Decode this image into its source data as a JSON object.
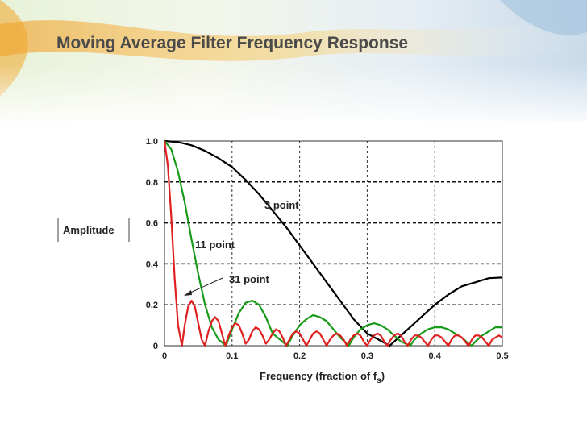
{
  "slide": {
    "title": "Moving Average Filter Frequency Response"
  },
  "chart_data": {
    "type": "line",
    "title": "",
    "xlabel": "Frequency (fraction of f",
    "xlabel_subscript": "s",
    "xlabel_suffix": ")",
    "ylabel": "Amplitude",
    "xlim": [
      0,
      0.5
    ],
    "ylim": [
      0,
      1.0
    ],
    "x_ticks": [
      "0",
      "0.1",
      "0.2",
      "0.3",
      "0.4",
      "0.5"
    ],
    "y_ticks": [
      "0",
      "0.2",
      "0.4",
      "0.6",
      "0.8",
      "1.0"
    ],
    "grid": true,
    "colors": {
      "3 point": "#000000",
      "11 point": "#1a9a1a",
      "31 point": "#e02020"
    },
    "series": [
      {
        "name": "3 point",
        "x": [
          0,
          0.02,
          0.04,
          0.06,
          0.08,
          0.1,
          0.12,
          0.14,
          0.16,
          0.18,
          0.2,
          0.22,
          0.24,
          0.26,
          0.28,
          0.3,
          0.3333,
          0.36,
          0.38,
          0.4,
          0.42,
          0.44,
          0.46,
          0.48,
          0.5
        ],
        "values": [
          1.0,
          0.995,
          0.979,
          0.952,
          0.916,
          0.873,
          0.81,
          0.74,
          0.66,
          0.58,
          0.49,
          0.4,
          0.31,
          0.22,
          0.13,
          0.06,
          0.0,
          0.08,
          0.14,
          0.2,
          0.25,
          0.29,
          0.31,
          0.33,
          0.333
        ]
      },
      {
        "name": "11 point",
        "x": [
          0,
          0.01,
          0.02,
          0.03,
          0.04,
          0.05,
          0.06,
          0.07,
          0.08,
          0.0909,
          0.1,
          0.11,
          0.12,
          0.13,
          0.14,
          0.15,
          0.16,
          0.1818,
          0.19,
          0.2,
          0.21,
          0.22,
          0.23,
          0.24,
          0.25,
          0.26,
          0.2727,
          0.28,
          0.29,
          0.3,
          0.31,
          0.32,
          0.33,
          0.34,
          0.35,
          0.3636,
          0.37,
          0.38,
          0.39,
          0.4,
          0.41,
          0.42,
          0.43,
          0.44,
          0.45,
          0.4545,
          0.46,
          0.47,
          0.48,
          0.49,
          0.5
        ],
        "values": [
          1.0,
          0.96,
          0.85,
          0.7,
          0.52,
          0.35,
          0.2,
          0.09,
          0.03,
          0.0,
          0.08,
          0.16,
          0.21,
          0.22,
          0.2,
          0.14,
          0.06,
          0.0,
          0.05,
          0.1,
          0.13,
          0.15,
          0.14,
          0.12,
          0.08,
          0.04,
          0.0,
          0.04,
          0.08,
          0.1,
          0.11,
          0.1,
          0.08,
          0.05,
          0.02,
          0.0,
          0.03,
          0.06,
          0.08,
          0.09,
          0.09,
          0.08,
          0.06,
          0.04,
          0.01,
          0.0,
          0.02,
          0.05,
          0.07,
          0.09,
          0.09
        ]
      },
      {
        "name": "31 point",
        "x": [
          0,
          0.005,
          0.01,
          0.015,
          0.02,
          0.0258,
          0.03,
          0.035,
          0.04,
          0.045,
          0.05,
          0.055,
          0.06,
          0.065,
          0.07,
          0.075,
          0.08,
          0.085,
          0.09,
          0.095,
          0.1,
          0.105,
          0.11,
          0.115,
          0.12,
          0.125,
          0.13,
          0.135,
          0.14,
          0.145,
          0.15,
          0.155,
          0.16,
          0.165,
          0.17,
          0.175,
          0.18,
          0.185,
          0.19,
          0.195,
          0.2,
          0.205,
          0.21,
          0.215,
          0.22,
          0.225,
          0.23,
          0.235,
          0.24,
          0.245,
          0.25,
          0.255,
          0.26,
          0.265,
          0.27,
          0.275,
          0.28,
          0.285,
          0.29,
          0.295,
          0.3,
          0.305,
          0.31,
          0.315,
          0.32,
          0.325,
          0.33,
          0.335,
          0.34,
          0.345,
          0.35,
          0.355,
          0.36,
          0.365,
          0.37,
          0.375,
          0.38,
          0.385,
          0.39,
          0.395,
          0.4,
          0.405,
          0.41,
          0.415,
          0.42,
          0.425,
          0.43,
          0.435,
          0.44,
          0.445,
          0.45,
          0.455,
          0.46,
          0.465,
          0.47,
          0.475,
          0.48,
          0.485,
          0.49,
          0.495,
          0.5
        ],
        "values": [
          1.0,
          0.88,
          0.63,
          0.33,
          0.1,
          0.0,
          0.1,
          0.19,
          0.22,
          0.19,
          0.11,
          0.03,
          0.0,
          0.07,
          0.12,
          0.14,
          0.12,
          0.06,
          0.0,
          0.05,
          0.09,
          0.11,
          0.1,
          0.06,
          0.01,
          0.03,
          0.07,
          0.09,
          0.08,
          0.05,
          0.01,
          0.03,
          0.06,
          0.08,
          0.07,
          0.04,
          0.0,
          0.03,
          0.06,
          0.07,
          0.06,
          0.03,
          0.0,
          0.03,
          0.06,
          0.07,
          0.06,
          0.03,
          0.0,
          0.03,
          0.05,
          0.06,
          0.05,
          0.03,
          0.0,
          0.03,
          0.05,
          0.06,
          0.05,
          0.02,
          0.0,
          0.03,
          0.05,
          0.06,
          0.05,
          0.02,
          0.0,
          0.03,
          0.05,
          0.06,
          0.05,
          0.02,
          0.0,
          0.03,
          0.05,
          0.05,
          0.04,
          0.02,
          0.0,
          0.03,
          0.05,
          0.05,
          0.04,
          0.02,
          0.0,
          0.03,
          0.05,
          0.05,
          0.04,
          0.02,
          0.0,
          0.03,
          0.05,
          0.05,
          0.04,
          0.02,
          0.0,
          0.03,
          0.04,
          0.05,
          0.04
        ]
      }
    ],
    "annotations": [
      "3 point",
      "11 point",
      "31 point"
    ]
  }
}
